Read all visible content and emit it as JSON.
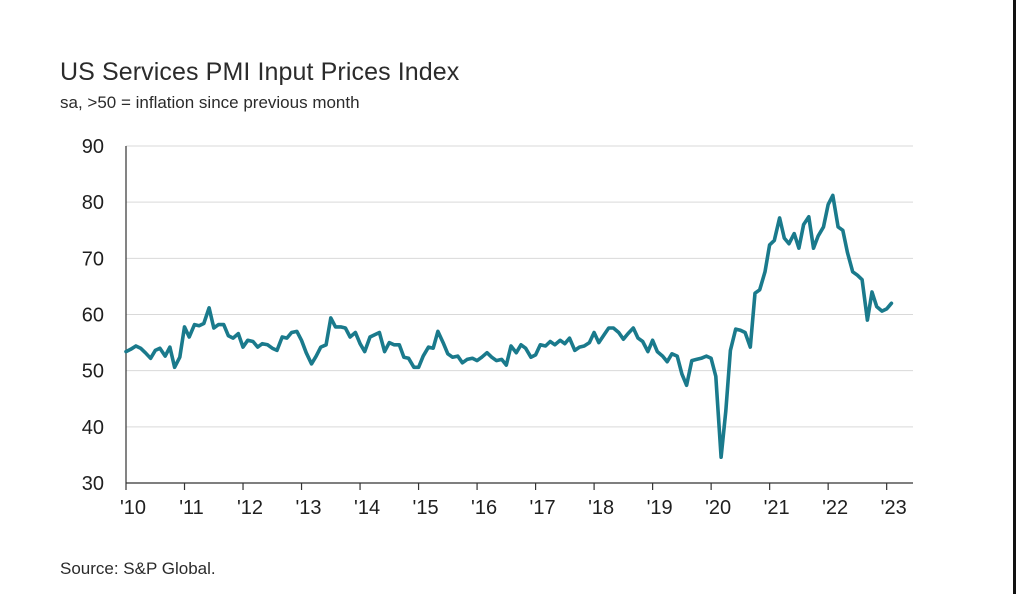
{
  "title": "US Services PMI Input Prices Index",
  "subtitle": "sa, >50 = inflation since previous month",
  "source": "Source: S&P Global.",
  "chart_data": {
    "type": "line",
    "title": "US Services PMI Input Prices Index",
    "subtitle": "sa, >50 = inflation since previous month",
    "xlabel": "",
    "ylabel": "",
    "ylim": [
      30,
      90
    ],
    "yticks": [
      30,
      40,
      50,
      60,
      70,
      80,
      90
    ],
    "xlim": [
      2010.0,
      2023.45
    ],
    "xtick_labels": [
      "'10",
      "'11",
      "'12",
      "'13",
      "'14",
      "'15",
      "'16",
      "'17",
      "'18",
      "'19",
      "'20",
      "'21",
      "'22",
      "'23"
    ],
    "grid": "horizontal",
    "line_color": "#1a7a8c",
    "series": [
      {
        "points": [
          [
            2010.0,
            53.4
          ],
          [
            2010.08,
            53.8
          ],
          [
            2010.17,
            54.4
          ],
          [
            2010.25,
            54.0
          ],
          [
            2010.33,
            53.2
          ],
          [
            2010.42,
            52.2
          ],
          [
            2010.5,
            53.6
          ],
          [
            2010.58,
            54.0
          ],
          [
            2010.67,
            52.6
          ],
          [
            2010.75,
            54.2
          ],
          [
            2010.83,
            50.6
          ],
          [
            2010.92,
            52.4
          ],
          [
            2011.0,
            57.8
          ],
          [
            2011.08,
            56.0
          ],
          [
            2011.17,
            58.2
          ],
          [
            2011.25,
            58.0
          ],
          [
            2011.33,
            58.4
          ],
          [
            2011.42,
            61.2
          ],
          [
            2011.5,
            57.6
          ],
          [
            2011.58,
            58.2
          ],
          [
            2011.67,
            58.2
          ],
          [
            2011.75,
            56.2
          ],
          [
            2011.83,
            55.8
          ],
          [
            2011.92,
            56.6
          ],
          [
            2012.0,
            54.2
          ],
          [
            2012.08,
            55.4
          ],
          [
            2012.17,
            55.2
          ],
          [
            2012.25,
            54.2
          ],
          [
            2012.33,
            54.8
          ],
          [
            2012.42,
            54.6
          ],
          [
            2012.5,
            54.0
          ],
          [
            2012.58,
            53.6
          ],
          [
            2012.67,
            56.0
          ],
          [
            2012.75,
            55.8
          ],
          [
            2012.83,
            56.8
          ],
          [
            2012.92,
            57.0
          ],
          [
            2013.0,
            55.4
          ],
          [
            2013.08,
            53.2
          ],
          [
            2013.17,
            51.2
          ],
          [
            2013.25,
            52.6
          ],
          [
            2013.33,
            54.2
          ],
          [
            2013.42,
            54.6
          ],
          [
            2013.5,
            59.4
          ],
          [
            2013.58,
            57.8
          ],
          [
            2013.67,
            57.8
          ],
          [
            2013.75,
            57.6
          ],
          [
            2013.83,
            56.0
          ],
          [
            2013.92,
            56.8
          ],
          [
            2014.0,
            54.8
          ],
          [
            2014.08,
            53.4
          ],
          [
            2014.17,
            56.0
          ],
          [
            2014.25,
            56.4
          ],
          [
            2014.33,
            56.8
          ],
          [
            2014.42,
            53.4
          ],
          [
            2014.5,
            55.0
          ],
          [
            2014.58,
            54.6
          ],
          [
            2014.67,
            54.6
          ],
          [
            2014.75,
            52.4
          ],
          [
            2014.83,
            52.2
          ],
          [
            2014.92,
            50.6
          ],
          [
            2015.0,
            50.6
          ],
          [
            2015.08,
            52.6
          ],
          [
            2015.17,
            54.2
          ],
          [
            2015.25,
            54.0
          ],
          [
            2015.33,
            57.0
          ],
          [
            2015.42,
            55.0
          ],
          [
            2015.5,
            53.0
          ],
          [
            2015.58,
            52.4
          ],
          [
            2015.67,
            52.6
          ],
          [
            2015.75,
            51.4
          ],
          [
            2015.83,
            52.0
          ],
          [
            2015.92,
            52.2
          ],
          [
            2016.0,
            51.8
          ],
          [
            2016.08,
            52.4
          ],
          [
            2016.17,
            53.2
          ],
          [
            2016.25,
            52.4
          ],
          [
            2016.33,
            51.8
          ],
          [
            2016.42,
            52.0
          ],
          [
            2016.5,
            51.0
          ],
          [
            2016.58,
            54.4
          ],
          [
            2016.67,
            53.2
          ],
          [
            2016.75,
            54.6
          ],
          [
            2016.83,
            54.0
          ],
          [
            2016.92,
            52.4
          ],
          [
            2017.0,
            52.8
          ],
          [
            2017.08,
            54.6
          ],
          [
            2017.17,
            54.4
          ],
          [
            2017.25,
            55.2
          ],
          [
            2017.33,
            54.6
          ],
          [
            2017.42,
            55.4
          ],
          [
            2017.5,
            54.8
          ],
          [
            2017.58,
            55.8
          ],
          [
            2017.67,
            53.6
          ],
          [
            2017.75,
            54.2
          ],
          [
            2017.83,
            54.4
          ],
          [
            2017.92,
            55.0
          ],
          [
            2018.0,
            56.8
          ],
          [
            2018.08,
            55.0
          ],
          [
            2018.17,
            56.4
          ],
          [
            2018.25,
            57.6
          ],
          [
            2018.33,
            57.6
          ],
          [
            2018.42,
            56.8
          ],
          [
            2018.5,
            55.6
          ],
          [
            2018.58,
            56.6
          ],
          [
            2018.67,
            57.6
          ],
          [
            2018.75,
            55.8
          ],
          [
            2018.83,
            55.2
          ],
          [
            2018.92,
            53.4
          ],
          [
            2019.0,
            55.4
          ],
          [
            2019.08,
            53.4
          ],
          [
            2019.17,
            52.6
          ],
          [
            2019.25,
            51.6
          ],
          [
            2019.33,
            53.0
          ],
          [
            2019.42,
            52.6
          ],
          [
            2019.5,
            49.4
          ],
          [
            2019.58,
            47.4
          ],
          [
            2019.67,
            51.8
          ],
          [
            2019.75,
            52.0
          ],
          [
            2019.83,
            52.2
          ],
          [
            2019.92,
            52.6
          ],
          [
            2020.0,
            52.2
          ],
          [
            2020.08,
            49.0
          ],
          [
            2020.17,
            34.6
          ],
          [
            2020.25,
            42.8
          ],
          [
            2020.33,
            53.6
          ],
          [
            2020.42,
            57.4
          ],
          [
            2020.5,
            57.2
          ],
          [
            2020.58,
            56.8
          ],
          [
            2020.67,
            54.2
          ],
          [
            2020.75,
            63.8
          ],
          [
            2020.83,
            64.4
          ],
          [
            2020.92,
            67.6
          ],
          [
            2021.0,
            72.4
          ],
          [
            2021.08,
            73.2
          ],
          [
            2021.17,
            77.2
          ],
          [
            2021.25,
            73.6
          ],
          [
            2021.33,
            72.6
          ],
          [
            2021.42,
            74.4
          ],
          [
            2021.5,
            71.8
          ],
          [
            2021.58,
            76.0
          ],
          [
            2021.67,
            77.4
          ],
          [
            2021.75,
            71.8
          ],
          [
            2021.83,
            74.0
          ],
          [
            2021.92,
            75.6
          ],
          [
            2022.0,
            79.6
          ],
          [
            2022.08,
            81.2
          ],
          [
            2022.17,
            75.6
          ],
          [
            2022.25,
            75.0
          ],
          [
            2022.33,
            71.0
          ],
          [
            2022.42,
            67.6
          ],
          [
            2022.5,
            67.0
          ],
          [
            2022.58,
            66.2
          ],
          [
            2022.67,
            59.0
          ],
          [
            2022.75,
            64.0
          ],
          [
            2022.83,
            61.4
          ],
          [
            2022.92,
            60.6
          ],
          [
            2023.0,
            61.0
          ],
          [
            2023.08,
            62.0
          ]
        ]
      }
    ]
  }
}
